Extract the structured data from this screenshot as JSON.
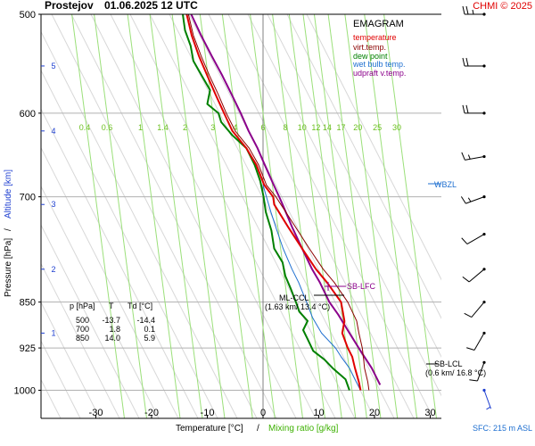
{
  "header": {
    "title": "Prostejov",
    "datetime": "01.06.2025 12 UTC",
    "copyright": "CHMI © 2025"
  },
  "legend": {
    "title": "EMAGRAM",
    "items": [
      {
        "label": "temperature",
        "color": "#e00000"
      },
      {
        "label": "virt.temp.",
        "color": "#8b0000"
      },
      {
        "label": "dew point",
        "color": "#008000"
      },
      {
        "label": "wet bulb temp.",
        "color": "#1e6fd0"
      },
      {
        "label": "udpraft v.temp.",
        "color": "#8b008b"
      }
    ]
  },
  "axes": {
    "xlabel_temperature": "Temperature [°C]",
    "xlabel_separator": "/",
    "xlabel_mixing": "Mixing ratio [g/kg]",
    "ylabel_pressure": "Pressure [hPa]",
    "ylabel_separator": "/",
    "ylabel_altitude": "Altitude [km]"
  },
  "table": {
    "headers": [
      "p [hPa]",
      "T",
      "Td [°C]"
    ],
    "rows": [
      [
        "500",
        "-13.7",
        "-14.4"
      ],
      [
        "700",
        "1.8",
        "0.1"
      ],
      [
        "850",
        "14.0",
        "5.9"
      ]
    ]
  },
  "annotations": {
    "sb_lfc": "SB-LFC",
    "wbzl": "WBZL",
    "ml_ccl_label": "ML-CCL",
    "ml_ccl_values": "(1.63 km/ 13.4 °C)",
    "sb_lcl_label": "SB-LCL",
    "sb_lcl_values": "(0.6 km/ 16.8 °C)",
    "sfc": "SFC: 215 m ASL"
  },
  "chart_data": {
    "type": "line",
    "chart_kind": "emagram",
    "x_axis": {
      "quantity": "temperature",
      "unit": "°C",
      "range": [
        -40,
        32
      ],
      "ticks": [
        -30,
        -20,
        -10,
        0,
        10,
        20,
        30
      ]
    },
    "y_axis": {
      "quantity": "pressure",
      "unit": "hPa",
      "scale": "log",
      "range": [
        1050,
        500
      ],
      "ticks": [
        500,
        600,
        700,
        850,
        925,
        1000
      ],
      "inverted": true
    },
    "altitude_ticks_km": [
      1,
      2,
      3,
      4,
      5
    ],
    "altitude_tick_pressures_hpa": [
      900,
      800,
      710,
      620,
      550
    ],
    "mixing_ratio_labels": [
      "0.4",
      "0.6",
      "1",
      "1.4",
      "2",
      "3",
      "4",
      "6",
      "8",
      "10",
      "12",
      "14",
      "17",
      "20",
      "25",
      "30"
    ],
    "mixing_ratio_label_temperatures_at_600hpa": [
      -32,
      -28,
      -22,
      -18,
      -14,
      -9,
      -5,
      0,
      4,
      7,
      9.5,
      11.5,
      14,
      17,
      20.5,
      24
    ],
    "grid": true,
    "legend_position": "top-right",
    "series": [
      {
        "name": "temperature",
        "color": "#e00000",
        "points": [
          [
            1000,
            17.5
          ],
          [
            985,
            17.2
          ],
          [
            960,
            16.5
          ],
          [
            940,
            16.0
          ],
          [
            925,
            15.2
          ],
          [
            900,
            14.2
          ],
          [
            880,
            14.6
          ],
          [
            850,
            14.0
          ],
          [
            820,
            11.5
          ],
          [
            800,
            9.5
          ],
          [
            770,
            7.0
          ],
          [
            740,
            4.5
          ],
          [
            710,
            2.0
          ],
          [
            700,
            1.8
          ],
          [
            685,
            0.2
          ],
          [
            660,
            -1.2
          ],
          [
            640,
            -3.0
          ],
          [
            620,
            -5.5
          ],
          [
            600,
            -7.0
          ],
          [
            580,
            -8.5
          ],
          [
            560,
            -10.0
          ],
          [
            540,
            -11.5
          ],
          [
            520,
            -12.8
          ],
          [
            500,
            -13.7
          ]
        ]
      },
      {
        "name": "virt.temp.",
        "color": "#8b0000",
        "points": [
          [
            1000,
            19.0
          ],
          [
            985,
            18.8
          ],
          [
            960,
            18.2
          ],
          [
            940,
            18.0
          ],
          [
            925,
            17.8
          ],
          [
            900,
            17.2
          ],
          [
            880,
            16.8
          ],
          [
            850,
            15.2
          ],
          [
            820,
            12.8
          ],
          [
            800,
            10.8
          ],
          [
            770,
            8.3
          ],
          [
            740,
            5.8
          ],
          [
            710,
            3.2
          ],
          [
            700,
            2.3
          ],
          [
            685,
            0.6
          ],
          [
            660,
            -0.8
          ],
          [
            640,
            -2.5
          ],
          [
            620,
            -5.0
          ],
          [
            600,
            -6.6
          ],
          [
            580,
            -8.0
          ],
          [
            560,
            -9.6
          ],
          [
            540,
            -11.1
          ],
          [
            520,
            -12.5
          ],
          [
            500,
            -13.4
          ]
        ]
      },
      {
        "name": "dew point",
        "color": "#008000",
        "points": [
          [
            1000,
            15.5
          ],
          [
            980,
            14.8
          ],
          [
            960,
            12.5
          ],
          [
            945,
            11.0
          ],
          [
            930,
            9.0
          ],
          [
            910,
            8.0
          ],
          [
            895,
            7.2
          ],
          [
            880,
            8.0
          ],
          [
            865,
            6.5
          ],
          [
            850,
            5.9
          ],
          [
            830,
            5.0
          ],
          [
            810,
            4.0
          ],
          [
            790,
            3.5
          ],
          [
            770,
            2.0
          ],
          [
            745,
            1.5
          ],
          [
            720,
            0.5
          ],
          [
            700,
            0.1
          ],
          [
            680,
            -0.5
          ],
          [
            660,
            -1.5
          ],
          [
            640,
            -3.0
          ],
          [
            625,
            -5.5
          ],
          [
            610,
            -7.5
          ],
          [
            600,
            -8.0
          ],
          [
            590,
            -10.0
          ],
          [
            575,
            -9.5
          ],
          [
            560,
            -11.0
          ],
          [
            545,
            -12.5
          ],
          [
            530,
            -13.0
          ],
          [
            515,
            -14.0
          ],
          [
            500,
            -14.4
          ]
        ]
      },
      {
        "name": "wet bulb temp.",
        "color": "#1e6fd0",
        "points": [
          [
            1000,
            17.5
          ],
          [
            980,
            16.5
          ],
          [
            960,
            15.5
          ],
          [
            940,
            14.0
          ],
          [
            925,
            13.0
          ],
          [
            900,
            10.5
          ],
          [
            875,
            8.9
          ],
          [
            850,
            7.8
          ],
          [
            820,
            6.4
          ],
          [
            800,
            5.2
          ],
          [
            770,
            3.6
          ],
          [
            745,
            2.5
          ],
          [
            720,
            1.4
          ],
          [
            700,
            0.6
          ],
          [
            685,
            0.0
          ]
        ]
      },
      {
        "name": "udpraft v.temp.",
        "color": "#8b008b",
        "points": [
          [
            990,
            21.0
          ],
          [
            960,
            19.5
          ],
          [
            930,
            17.5
          ],
          [
            900,
            15.5
          ],
          [
            870,
            13.5
          ],
          [
            850,
            11.9
          ],
          [
            820,
            10.2
          ],
          [
            800,
            8.8
          ],
          [
            770,
            7.0
          ],
          [
            740,
            5.2
          ],
          [
            710,
            3.5
          ],
          [
            700,
            2.9
          ],
          [
            680,
            1.6
          ],
          [
            660,
            0.3
          ],
          [
            640,
            -1.0
          ],
          [
            620,
            -2.6
          ],
          [
            600,
            -4.0
          ],
          [
            580,
            -5.6
          ],
          [
            560,
            -7.3
          ],
          [
            540,
            -9.2
          ],
          [
            520,
            -11.1
          ],
          [
            500,
            -12.9
          ]
        ]
      }
    ],
    "wind_barbs": [
      {
        "pressure": 500,
        "direction_deg": 270,
        "speed_kt": 25
      },
      {
        "pressure": 550,
        "direction_deg": 270,
        "speed_kt": 20
      },
      {
        "pressure": 600,
        "direction_deg": 270,
        "speed_kt": 20
      },
      {
        "pressure": 650,
        "direction_deg": 260,
        "speed_kt": 15
      },
      {
        "pressure": 700,
        "direction_deg": 250,
        "speed_kt": 15
      },
      {
        "pressure": 750,
        "direction_deg": 240,
        "speed_kt": 10
      },
      {
        "pressure": 800,
        "direction_deg": 230,
        "speed_kt": 10
      },
      {
        "pressure": 850,
        "direction_deg": 220,
        "speed_kt": 10
      },
      {
        "pressure": 900,
        "direction_deg": 210,
        "speed_kt": 10
      },
      {
        "pressure": 950,
        "direction_deg": 200,
        "speed_kt": 10
      },
      {
        "pressure": 1000,
        "direction_deg": 160,
        "speed_kt": 5
      }
    ]
  }
}
